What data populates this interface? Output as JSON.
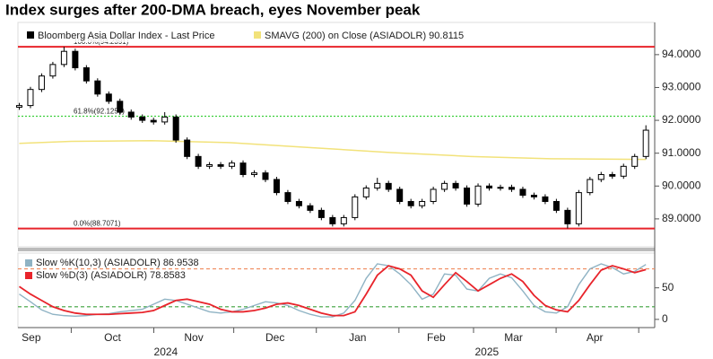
{
  "chart_data": [
    {
      "type": "candlestick",
      "title": "Index surges after 200-DMA breach, eyes November peak",
      "name": "Bloomberg Asia Dollar Index - Last Price",
      "color": "#000000",
      "x": [
        10.5,
        14.7,
        18.9,
        23.1,
        27.3,
        31.5,
        35.7,
        39.9,
        44.1,
        48.3,
        52.5,
        56.7,
        60.9,
        65.1,
        69.3,
        73.5,
        77.7,
        81.9,
        86.1,
        90.3,
        94.5,
        98.7,
        102.9,
        107.1,
        111.3,
        115.5,
        119.7,
        123.9,
        128.1,
        132.3,
        136.5,
        140.7,
        144.9,
        149.1,
        153.3,
        157.5,
        161.7,
        165.9,
        170.1,
        174.3,
        178.5,
        182.7,
        186.9,
        191.1,
        195.3,
        199.5,
        203.7,
        207.9,
        212.1,
        216.3,
        220.5,
        224.7,
        228.9,
        233.1,
        237.3,
        241.5,
        245.7
      ],
      "open": [
        92.4,
        92.45,
        92.94,
        93.35,
        93.7,
        94.1,
        93.6,
        93.2,
        92.8,
        92.58,
        92.25,
        92.1,
        92.0,
        91.95,
        92.1,
        91.4,
        90.9,
        90.6,
        90.65,
        90.6,
        90.7,
        90.35,
        90.4,
        90.2,
        89.8,
        89.53,
        89.4,
        89.26,
        89.04,
        88.85,
        89.04,
        89.67,
        89.94,
        90.08,
        89.9,
        89.53,
        89.4,
        89.53,
        89.9,
        90.08,
        89.94,
        89.45,
        90.0,
        89.94,
        89.96,
        89.9,
        89.72,
        89.67,
        89.53,
        89.26,
        88.85,
        89.8,
        90.2,
        90.35,
        90.3,
        90.6,
        90.9
      ],
      "high": [
        92.53,
        93.02,
        93.43,
        93.78,
        94.24,
        94.18,
        93.68,
        93.28,
        92.88,
        92.66,
        92.33,
        92.18,
        92.08,
        92.25,
        92.18,
        91.48,
        90.98,
        90.73,
        90.73,
        90.78,
        90.78,
        90.48,
        90.48,
        90.28,
        89.88,
        89.61,
        89.48,
        89.34,
        89.12,
        89.12,
        89.75,
        90.02,
        90.25,
        90.16,
        89.98,
        89.61,
        89.61,
        89.98,
        90.16,
        90.16,
        90.02,
        90.08,
        90.08,
        90.04,
        90.04,
        89.98,
        89.8,
        89.75,
        89.61,
        89.34,
        89.88,
        90.28,
        90.43,
        90.43,
        90.68,
        90.98,
        91.85
      ],
      "low": [
        92.32,
        92.37,
        92.86,
        93.27,
        93.62,
        93.52,
        93.12,
        92.72,
        92.5,
        92.17,
        92.02,
        91.92,
        91.87,
        91.87,
        91.32,
        90.82,
        90.52,
        90.52,
        90.52,
        90.52,
        90.27,
        90.27,
        90.12,
        89.72,
        89.45,
        89.32,
        89.18,
        88.96,
        88.77,
        88.77,
        88.96,
        89.59,
        89.86,
        89.82,
        89.45,
        89.32,
        89.32,
        89.45,
        89.82,
        89.86,
        89.37,
        89.37,
        89.86,
        89.86,
        89.82,
        89.64,
        89.59,
        89.45,
        89.18,
        88.71,
        88.77,
        89.72,
        90.12,
        90.22,
        90.22,
        90.52,
        90.82
      ],
      "close": [
        92.45,
        92.94,
        93.35,
        93.7,
        94.1,
        93.6,
        93.2,
        92.8,
        92.58,
        92.25,
        92.1,
        92.0,
        91.95,
        92.1,
        91.4,
        90.9,
        90.6,
        90.65,
        90.6,
        90.7,
        90.35,
        90.4,
        90.2,
        89.8,
        89.53,
        89.4,
        89.26,
        89.04,
        88.85,
        89.04,
        89.67,
        89.94,
        90.08,
        89.9,
        89.53,
        89.4,
        89.53,
        89.9,
        90.08,
        89.94,
        89.45,
        90.0,
        89.94,
        89.96,
        89.9,
        89.72,
        89.67,
        89.53,
        89.26,
        88.85,
        89.8,
        90.2,
        90.35,
        90.3,
        90.6,
        90.9,
        91.7
      ],
      "sma": {
        "name": "SMAVG (200)  on Close (ASIADOLR) 90.8115",
        "color": "#f2e27a",
        "x": [
          10.5,
          30,
          60,
          90,
          120,
          150,
          180,
          210,
          245.7
        ],
        "values": [
          91.3,
          91.36,
          91.38,
          91.32,
          91.17,
          91.02,
          90.9,
          90.83,
          90.81
        ]
      },
      "levels": [
        {
          "value": 94.2391,
          "label": "100.0%(94.2391)",
          "color": "#e8242b"
        },
        {
          "value": 92.1259,
          "label": "61.8%(92.1259)",
          "color": "#3ccf3c"
        },
        {
          "value": 88.7071,
          "label": "0.0%(88.7071)",
          "color": "#e8242b"
        }
      ],
      "xlim": [
        10,
        249
      ],
      "ylim": [
        88.15,
        94.98
      ],
      "yticks": [
        {
          "value": 89,
          "label": "89.0000"
        },
        {
          "value": 90,
          "label": "90.0000"
        },
        {
          "value": 91,
          "label": "91.0000"
        },
        {
          "value": 92,
          "label": "92.0000"
        },
        {
          "value": 93,
          "label": "93.0000"
        },
        {
          "value": 94,
          "label": "94.0000"
        }
      ]
    },
    {
      "type": "line",
      "x": [
        10.5,
        14.7,
        18.9,
        23.1,
        27.3,
        31.5,
        35.7,
        39.9,
        44.1,
        48.3,
        52.5,
        56.7,
        60.9,
        65.1,
        69.3,
        73.5,
        77.7,
        81.9,
        86.1,
        90.3,
        94.5,
        98.7,
        102.9,
        107.1,
        111.3,
        115.5,
        119.7,
        123.9,
        128.1,
        132.3,
        136.5,
        140.7,
        144.9,
        149.1,
        153.3,
        157.5,
        161.7,
        165.9,
        170.1,
        174.3,
        178.5,
        182.7,
        186.9,
        191.1,
        195.3,
        199.5,
        203.7,
        207.9,
        212.1,
        216.3,
        220.5,
        224.7,
        228.9,
        233.1,
        237.3,
        241.5,
        245.7
      ],
      "series": [
        {
          "name": "Slow %K(10,3) (ASIADOLR) 86.9538",
          "color": "#8fb3c4",
          "values": [
            40,
            28,
            15,
            8,
            6,
            5,
            6,
            8,
            9,
            12,
            14,
            16,
            24,
            32,
            30,
            24,
            18,
            12,
            10,
            12,
            16,
            22,
            28,
            26,
            22,
            14,
            8,
            4,
            4,
            10,
            30,
            65,
            88,
            85,
            72,
            55,
            32,
            40,
            72,
            70,
            48,
            45,
            65,
            72,
            66,
            45,
            22,
            12,
            10,
            20,
            55,
            80,
            88,
            82,
            72,
            76,
            86.9538
          ]
        },
        {
          "name": "Slow %D(3) (ASIADOLR)     78.8583",
          "color": "#e8242b",
          "values": [
            52,
            40,
            30,
            20,
            14,
            10,
            8,
            8,
            8,
            9,
            10,
            11,
            14,
            22,
            30,
            32,
            28,
            24,
            16,
            12,
            12,
            14,
            18,
            24,
            26,
            22,
            16,
            10,
            6,
            6,
            12,
            40,
            70,
            85,
            80,
            70,
            45,
            35,
            55,
            74,
            60,
            45,
            55,
            65,
            72,
            60,
            38,
            22,
            15,
            12,
            30,
            55,
            78,
            85,
            80,
            74,
            78.8583
          ]
        }
      ],
      "levels": [
        {
          "value": 80,
          "color": "#f08a5d"
        },
        {
          "value": 20,
          "color": "#3ca03c"
        }
      ],
      "xlim": [
        10,
        249
      ],
      "ylim": [
        -13,
        105
      ],
      "yticks": [
        0,
        50
      ],
      "xticks": [
        {
          "value": 15,
          "label": "Sep"
        },
        {
          "value": 45.5,
          "label": "Oct"
        },
        {
          "value": 76,
          "label": "Nov"
        },
        {
          "value": 106.5,
          "label": "Dec"
        },
        {
          "value": 137.5,
          "label": "Jan"
        },
        {
          "value": 167,
          "label": "Feb"
        },
        {
          "value": 196,
          "label": "Mar"
        },
        {
          "value": 226.5,
          "label": "Apr"
        }
      ],
      "x_boundaries": [
        30,
        61,
        91,
        122,
        153,
        181,
        212,
        243
      ],
      "year_ticks": [
        {
          "value": 65.5,
          "label": "2024"
        },
        {
          "value": 186,
          "label": "2025"
        }
      ]
    }
  ]
}
